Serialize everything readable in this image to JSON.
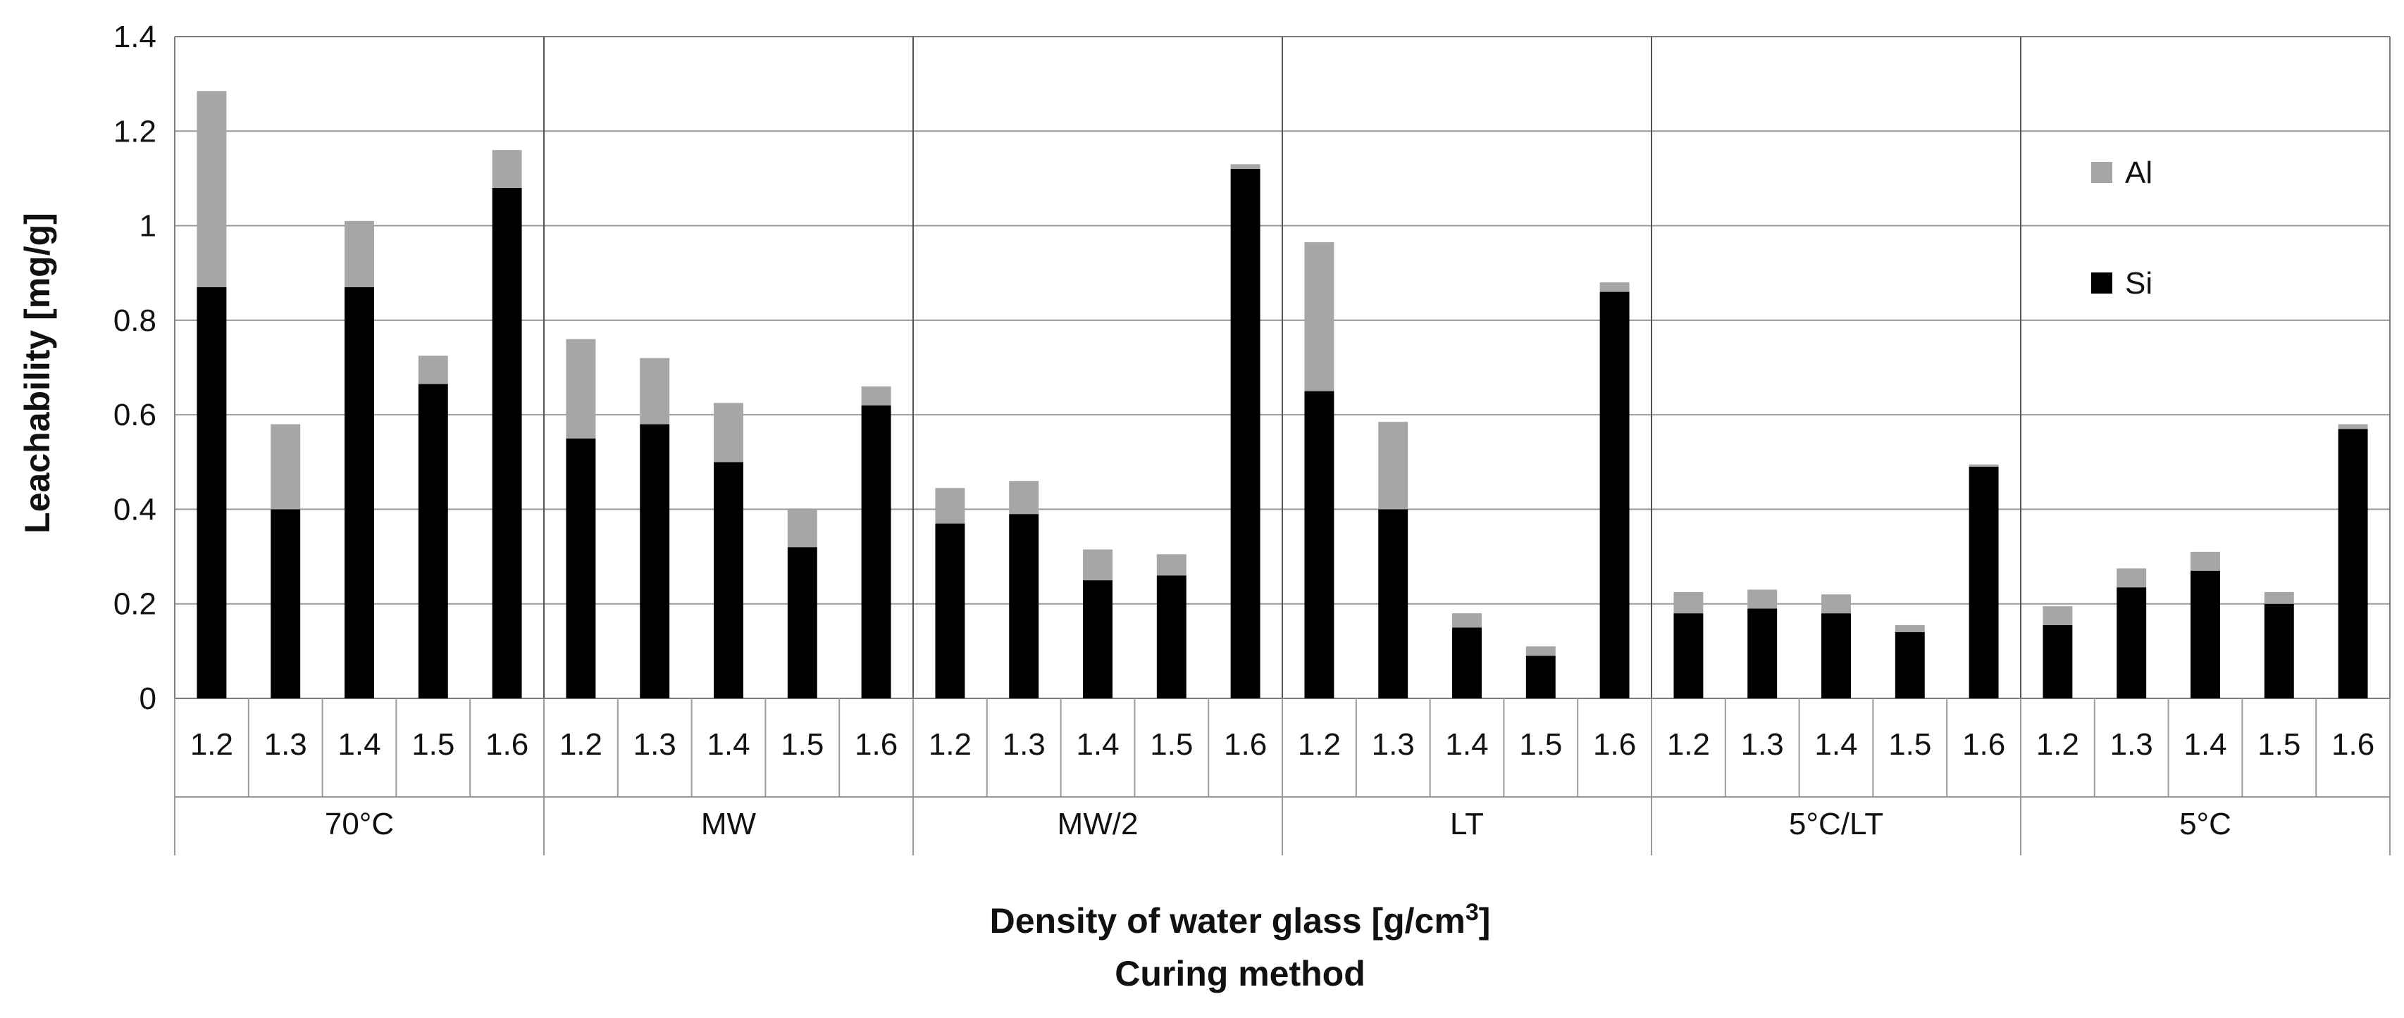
{
  "chart_data": {
    "type": "bar",
    "stacked": true,
    "ylabel": "Leachability [mg/g]",
    "xlabel_line1": "Density of water glass [g/cm",
    "xlabel_sup": "3",
    "xlabel_line1_end": "]",
    "xlabel_line2": "Curing method",
    "ylim": [
      0,
      1.4
    ],
    "yticks": [
      "0",
      "0.2",
      "0.4",
      "0.6",
      "0.8",
      "1",
      "1.2",
      "1.4"
    ],
    "grid": true,
    "legend_position": "top-right",
    "densities": [
      "1.2",
      "1.3",
      "1.4",
      "1.5",
      "1.6"
    ],
    "groups": [
      "70°C",
      "MW",
      "MW/2",
      "LT",
      "5°C/LT",
      "5°C"
    ],
    "series": [
      {
        "name": "Si",
        "color": "#000000",
        "values": [
          0.87,
          0.4,
          0.87,
          0.665,
          1.08,
          0.55,
          0.58,
          0.5,
          0.32,
          0.62,
          0.37,
          0.39,
          0.25,
          0.26,
          1.12,
          0.65,
          0.4,
          0.15,
          0.09,
          0.86,
          0.18,
          0.19,
          0.18,
          0.14,
          0.49,
          0.155,
          0.235,
          0.27,
          0.2,
          0.57
        ]
      },
      {
        "name": "Al",
        "color": "#a6a6a6",
        "values": [
          0.415,
          0.18,
          0.14,
          0.06,
          0.08,
          0.21,
          0.14,
          0.125,
          0.08,
          0.04,
          0.075,
          0.07,
          0.065,
          0.045,
          0.01,
          0.315,
          0.185,
          0.03,
          0.02,
          0.02,
          0.045,
          0.04,
          0.04,
          0.015,
          0.005,
          0.04,
          0.04,
          0.04,
          0.025,
          0.01
        ]
      }
    ],
    "legend": [
      "Al",
      "Si"
    ]
  }
}
